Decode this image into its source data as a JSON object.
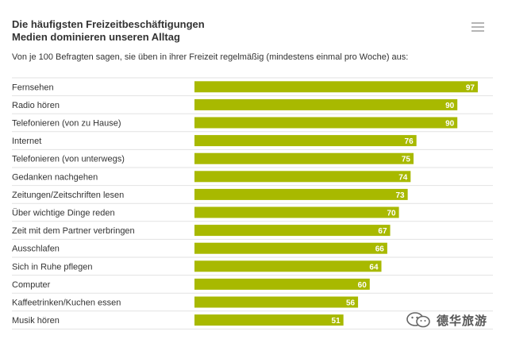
{
  "chart_data": {
    "type": "bar",
    "orientation": "horizontal",
    "title": "Die häufigsten Freizeitbeschäftigungen",
    "subtitle": "Medien dominieren unseren Alltag",
    "description": "Von je 100 Befragten sagen, sie üben in ihrer Freizeit regelmäßig (mindestens einmal pro Woche) aus:",
    "categories": [
      "Fernsehen",
      "Radio hören",
      "Telefonieren (von zu Hause)",
      "Internet",
      "Telefonieren (von unterwegs)",
      "Gedanken nachgehen",
      "Zeitungen/Zeitschriften lesen",
      "Über wichtige Dinge reden",
      "Zeit mit dem Partner verbringen",
      "Ausschlafen",
      "Sich in Ruhe pflegen",
      "Computer",
      "Kaffeetrinken/Kuchen essen",
      "Musik hören"
    ],
    "values": [
      97,
      90,
      90,
      76,
      75,
      74,
      73,
      70,
      67,
      66,
      64,
      60,
      56,
      51
    ],
    "xlim": [
      0,
      100
    ],
    "bar_color": "#a8b900",
    "grid": false,
    "legend": "none"
  },
  "watermark": {
    "text": "德华旅游",
    "icon": "wechat-icon"
  },
  "toolbar": {
    "menu_icon": "hamburger-menu-icon"
  }
}
